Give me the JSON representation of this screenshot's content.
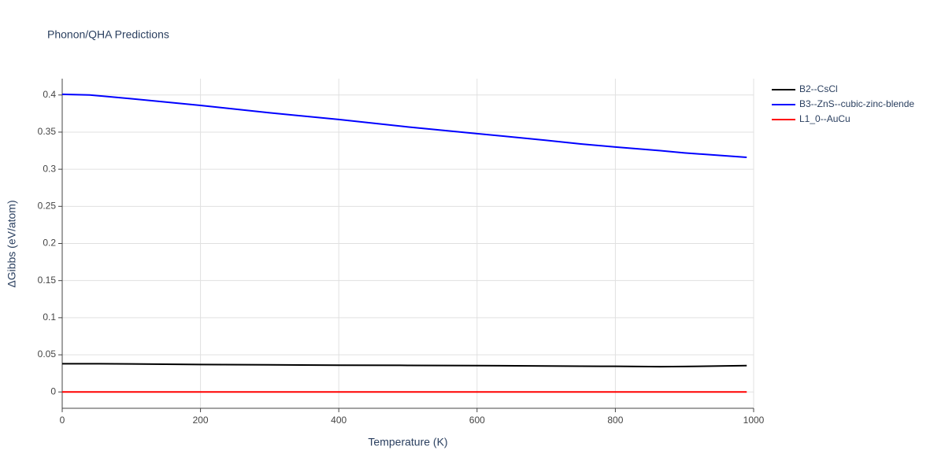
{
  "chart_data": {
    "type": "line",
    "title": "Phonon/QHA Predictions",
    "x_label": "Temperature (K)",
    "y_label": "ΔGibbs (eV/atom)",
    "x": [
      0,
      40,
      100,
      200,
      300,
      400,
      500,
      600,
      700,
      750,
      800,
      865,
      900,
      990
    ],
    "series": [
      {
        "name": "B2--CsCl",
        "color": "#000000",
        "values": [
          0.038,
          0.038,
          0.0378,
          0.037,
          0.0365,
          0.036,
          0.0358,
          0.0355,
          0.035,
          0.0347,
          0.0345,
          0.034,
          0.0343,
          0.0355
        ]
      },
      {
        "name": "B3--ZnS--cubic-zinc-blende",
        "color": "#0000ff",
        "values": [
          0.401,
          0.4,
          0.395,
          0.386,
          0.376,
          0.367,
          0.357,
          0.348,
          0.339,
          0.334,
          0.33,
          0.325,
          0.322,
          0.316
        ]
      },
      {
        "name": "L1_0--AuCu",
        "color": "#ff0000",
        "values": [
          0,
          0,
          0,
          0,
          0,
          0,
          0,
          0,
          0,
          0,
          0,
          0,
          0,
          0
        ]
      }
    ],
    "xlim": [
      0,
      1000
    ],
    "xticks": [
      0,
      200,
      400,
      600,
      800,
      1000
    ],
    "ylim": [
      -0.022,
      0.422
    ],
    "yticks": [
      0,
      0.05,
      0.1,
      0.15,
      0.2,
      0.25,
      0.3,
      0.35,
      0.4
    ],
    "grid": true,
    "legend": "top-right"
  }
}
